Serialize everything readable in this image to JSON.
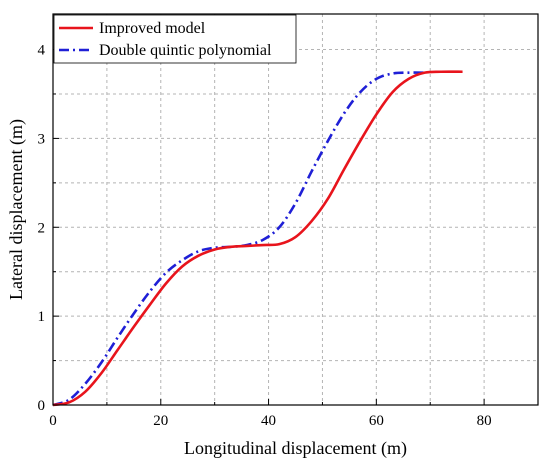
{
  "chart_data": {
    "type": "line",
    "title": "",
    "xlabel": "Longitudinal displacement (m)",
    "ylabel": "Lateral displacement (m)",
    "xlim": [
      0,
      90
    ],
    "ylim": [
      0,
      4.4
    ],
    "xticks": [
      0,
      20,
      40,
      60,
      80
    ],
    "yticks": [
      0,
      1,
      2,
      3,
      4
    ],
    "xtick_labels": [
      "0",
      "20",
      "40",
      "60",
      "80"
    ],
    "ytick_labels": [
      "0",
      "1",
      "2",
      "3",
      "4"
    ],
    "grid": true,
    "legend_position": "top-left",
    "series": [
      {
        "name": "Improved model",
        "color": "#e8141c",
        "dash": "solid",
        "x": [
          0,
          3,
          6,
          9,
          12,
          15,
          18,
          21,
          24,
          27,
          30,
          33,
          36,
          39,
          42,
          45,
          48,
          51,
          54,
          57,
          60,
          63,
          66,
          69,
          72,
          76
        ],
        "y": [
          0,
          0.03,
          0.15,
          0.36,
          0.62,
          0.88,
          1.13,
          1.37,
          1.56,
          1.68,
          1.75,
          1.78,
          1.79,
          1.8,
          1.81,
          1.89,
          2.07,
          2.32,
          2.65,
          2.97,
          3.27,
          3.52,
          3.67,
          3.74,
          3.75,
          3.75
        ]
      },
      {
        "name": "Double quintic polynomial",
        "color": "#1f1fd6",
        "dash": "dashdot",
        "x": [
          0,
          3,
          6,
          9,
          12,
          15,
          18,
          21,
          24,
          27,
          30,
          33,
          36,
          39,
          42,
          45,
          48,
          51,
          54,
          57,
          60,
          63,
          66,
          69
        ],
        "y": [
          0,
          0.06,
          0.24,
          0.48,
          0.76,
          1.03,
          1.28,
          1.49,
          1.63,
          1.73,
          1.77,
          1.78,
          1.8,
          1.86,
          2.0,
          2.27,
          2.63,
          2.97,
          3.28,
          3.52,
          3.67,
          3.73,
          3.74,
          3.74
        ]
      }
    ]
  }
}
